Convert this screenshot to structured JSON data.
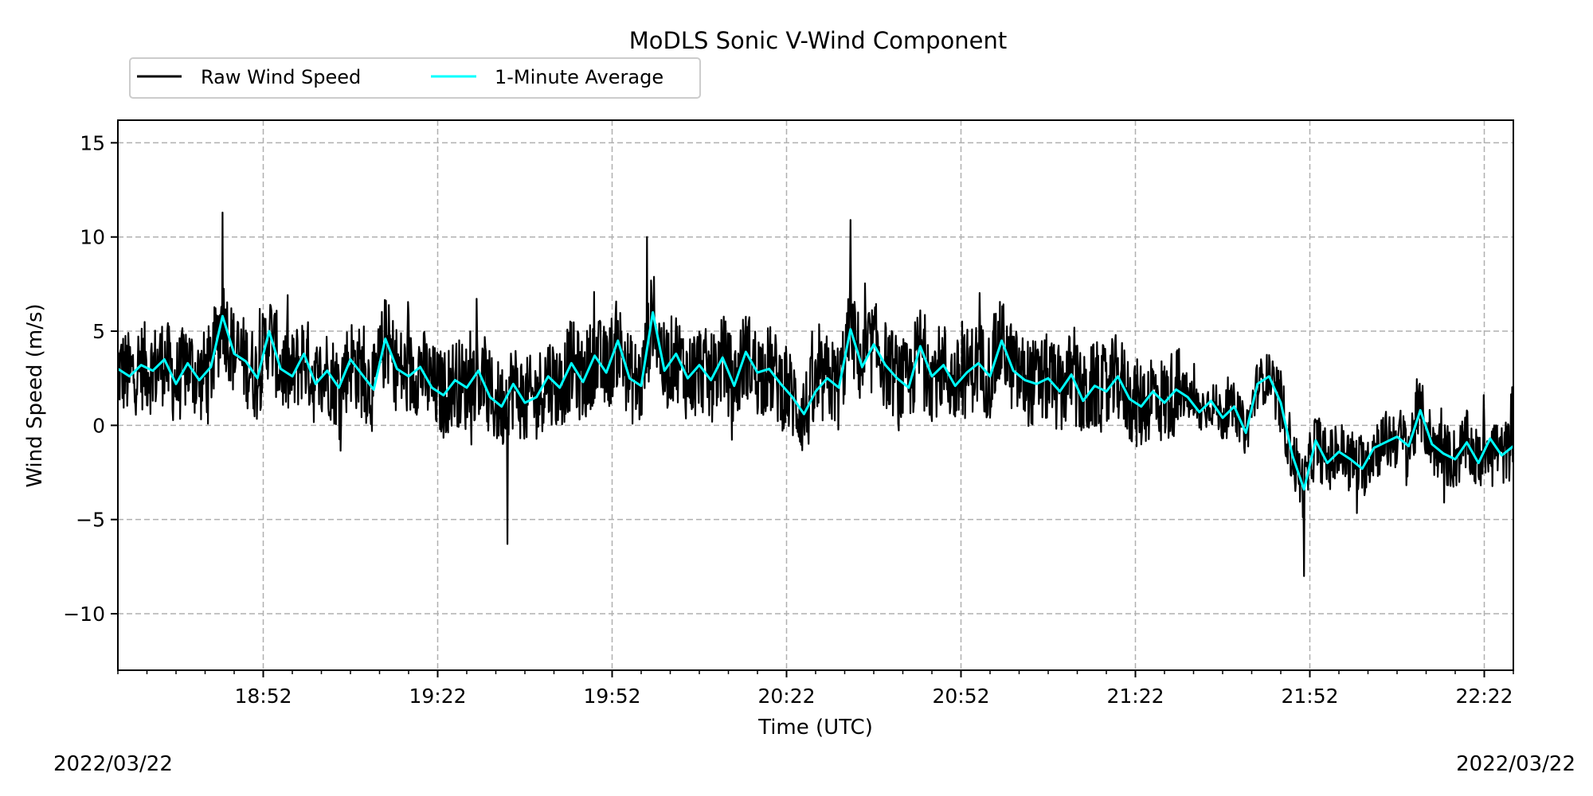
{
  "chart_data": {
    "type": "line",
    "title": "MoDLS Sonic V-Wind Component",
    "xlabel": "Time (UTC)",
    "ylabel": "Wind Speed (m/s)",
    "date_left": "2022/03/22",
    "date_right": "2022/03/22",
    "x_range": [
      "18:27",
      "22:27"
    ],
    "ylim": [
      -13,
      16.2
    ],
    "y_ticks": [
      15,
      10,
      5,
      0,
      -5,
      -10
    ],
    "y_tick_labels": [
      "15",
      "10",
      "5",
      "0",
      "−5",
      "−10"
    ],
    "x_ticks": [
      "18:52",
      "19:22",
      "19:52",
      "20:22",
      "20:52",
      "21:22",
      "21:52",
      "22:22"
    ],
    "grid": true,
    "legend_position": "top-left, above plot",
    "series": [
      {
        "name": "Raw Wind Speed",
        "color": "#000000",
        "style": "high-frequency noisy trace around the 1-minute average",
        "extremes": [
          {
            "time": "18:45",
            "value": 11.3
          },
          {
            "time": "20:33",
            "value": 10.9
          },
          {
            "time": "19:58",
            "value": 10.0
          },
          {
            "time": "19:34",
            "value": -6.3
          },
          {
            "time": "21:51",
            "value": -8.0
          }
        ]
      },
      {
        "name": "1-Minute Average",
        "color": "#00FFFF",
        "x": [
          "18:27",
          "18:29",
          "18:31",
          "18:33",
          "18:35",
          "18:37",
          "18:39",
          "18:41",
          "18:43",
          "18:45",
          "18:47",
          "18:49",
          "18:51",
          "18:53",
          "18:55",
          "18:57",
          "18:59",
          "19:01",
          "19:03",
          "19:05",
          "19:07",
          "19:09",
          "19:11",
          "19:13",
          "19:15",
          "19:17",
          "19:19",
          "19:21",
          "19:23",
          "19:25",
          "19:27",
          "19:29",
          "19:31",
          "19:33",
          "19:35",
          "19:37",
          "19:39",
          "19:41",
          "19:43",
          "19:45",
          "19:47",
          "19:49",
          "19:51",
          "19:53",
          "19:55",
          "19:57",
          "19:59",
          "20:01",
          "20:03",
          "20:05",
          "20:07",
          "20:09",
          "20:11",
          "20:13",
          "20:15",
          "20:17",
          "20:19",
          "20:21",
          "20:23",
          "20:25",
          "20:27",
          "20:29",
          "20:31",
          "20:33",
          "20:35",
          "20:37",
          "20:39",
          "20:41",
          "20:43",
          "20:45",
          "20:47",
          "20:49",
          "20:51",
          "20:53",
          "20:55",
          "20:57",
          "20:59",
          "21:01",
          "21:03",
          "21:05",
          "21:07",
          "21:09",
          "21:11",
          "21:13",
          "21:15",
          "21:17",
          "21:19",
          "21:21",
          "21:23",
          "21:25",
          "21:27",
          "21:29",
          "21:31",
          "21:33",
          "21:35",
          "21:37",
          "21:39",
          "21:41",
          "21:43",
          "21:45",
          "21:47",
          "21:49",
          "21:51",
          "21:53",
          "21:55",
          "21:57",
          "21:59",
          "22:01",
          "22:03",
          "22:05",
          "22:07",
          "22:09",
          "22:11",
          "22:13",
          "22:15",
          "22:17",
          "22:19",
          "22:21",
          "22:23",
          "22:25",
          "22:27"
        ],
        "values": [
          3.0,
          2.6,
          3.2,
          2.9,
          3.5,
          2.2,
          3.3,
          2.4,
          3.1,
          5.8,
          3.8,
          3.4,
          2.5,
          5.0,
          3.0,
          2.6,
          3.8,
          2.2,
          2.9,
          2.0,
          3.5,
          2.7,
          1.9,
          4.6,
          3.0,
          2.6,
          3.1,
          2.0,
          1.6,
          2.4,
          2.0,
          2.9,
          1.5,
          1.0,
          2.2,
          1.2,
          1.5,
          2.6,
          2.0,
          3.3,
          2.3,
          3.7,
          2.8,
          4.5,
          2.5,
          2.1,
          6.0,
          2.9,
          3.8,
          2.5,
          3.2,
          2.4,
          3.6,
          2.1,
          3.9,
          2.8,
          3.0,
          2.2,
          1.5,
          0.6,
          1.8,
          2.5,
          2.0,
          5.1,
          3.1,
          4.3,
          3.2,
          2.5,
          2.0,
          4.2,
          2.6,
          3.2,
          2.1,
          2.8,
          3.3,
          2.6,
          4.5,
          2.9,
          2.4,
          2.2,
          2.5,
          1.8,
          2.7,
          1.3,
          2.1,
          1.8,
          2.6,
          1.4,
          1.0,
          1.8,
          1.2,
          1.9,
          1.5,
          0.7,
          1.3,
          0.4,
          1.0,
          -0.4,
          2.2,
          2.6,
          1.2,
          -1.6,
          -3.4,
          -0.8,
          -2.0,
          -1.4,
          -1.8,
          -2.3,
          -1.2,
          -0.9,
          -0.6,
          -1.1,
          0.8,
          -1.0,
          -1.5,
          -1.8,
          -0.9,
          -2.0,
          -0.7,
          -1.6,
          -1.1
        ]
      }
    ]
  }
}
